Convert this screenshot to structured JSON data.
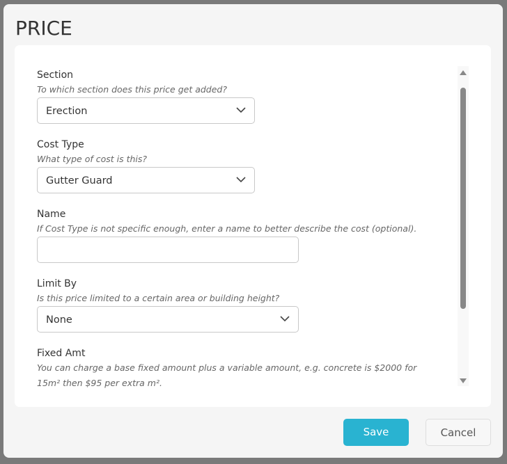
{
  "dialog": {
    "title": "PRICE",
    "fields": [
      {
        "label": "Section",
        "hint": "To which section does this price get added?",
        "value": "Erection"
      },
      {
        "label": "Cost Type",
        "hint": "What type of cost is this?",
        "value": "Gutter Guard"
      },
      {
        "label": "Name",
        "hint": "If Cost Type is not specific enough, enter a name to better describe the cost (optional).",
        "value": ""
      },
      {
        "label": "Limit By",
        "hint": "Is this price limited to a certain area or building height?",
        "value": "None"
      },
      {
        "label": "Fixed Amt",
        "hint": "You can charge a base fixed amount plus a variable amount, e.g. concrete is $2000 for",
        "hint2": "15m² then $95 per extra m²."
      }
    ],
    "save_label": "Save",
    "cancel_label": "Cancel",
    "accent_color": "#29b3d1"
  }
}
